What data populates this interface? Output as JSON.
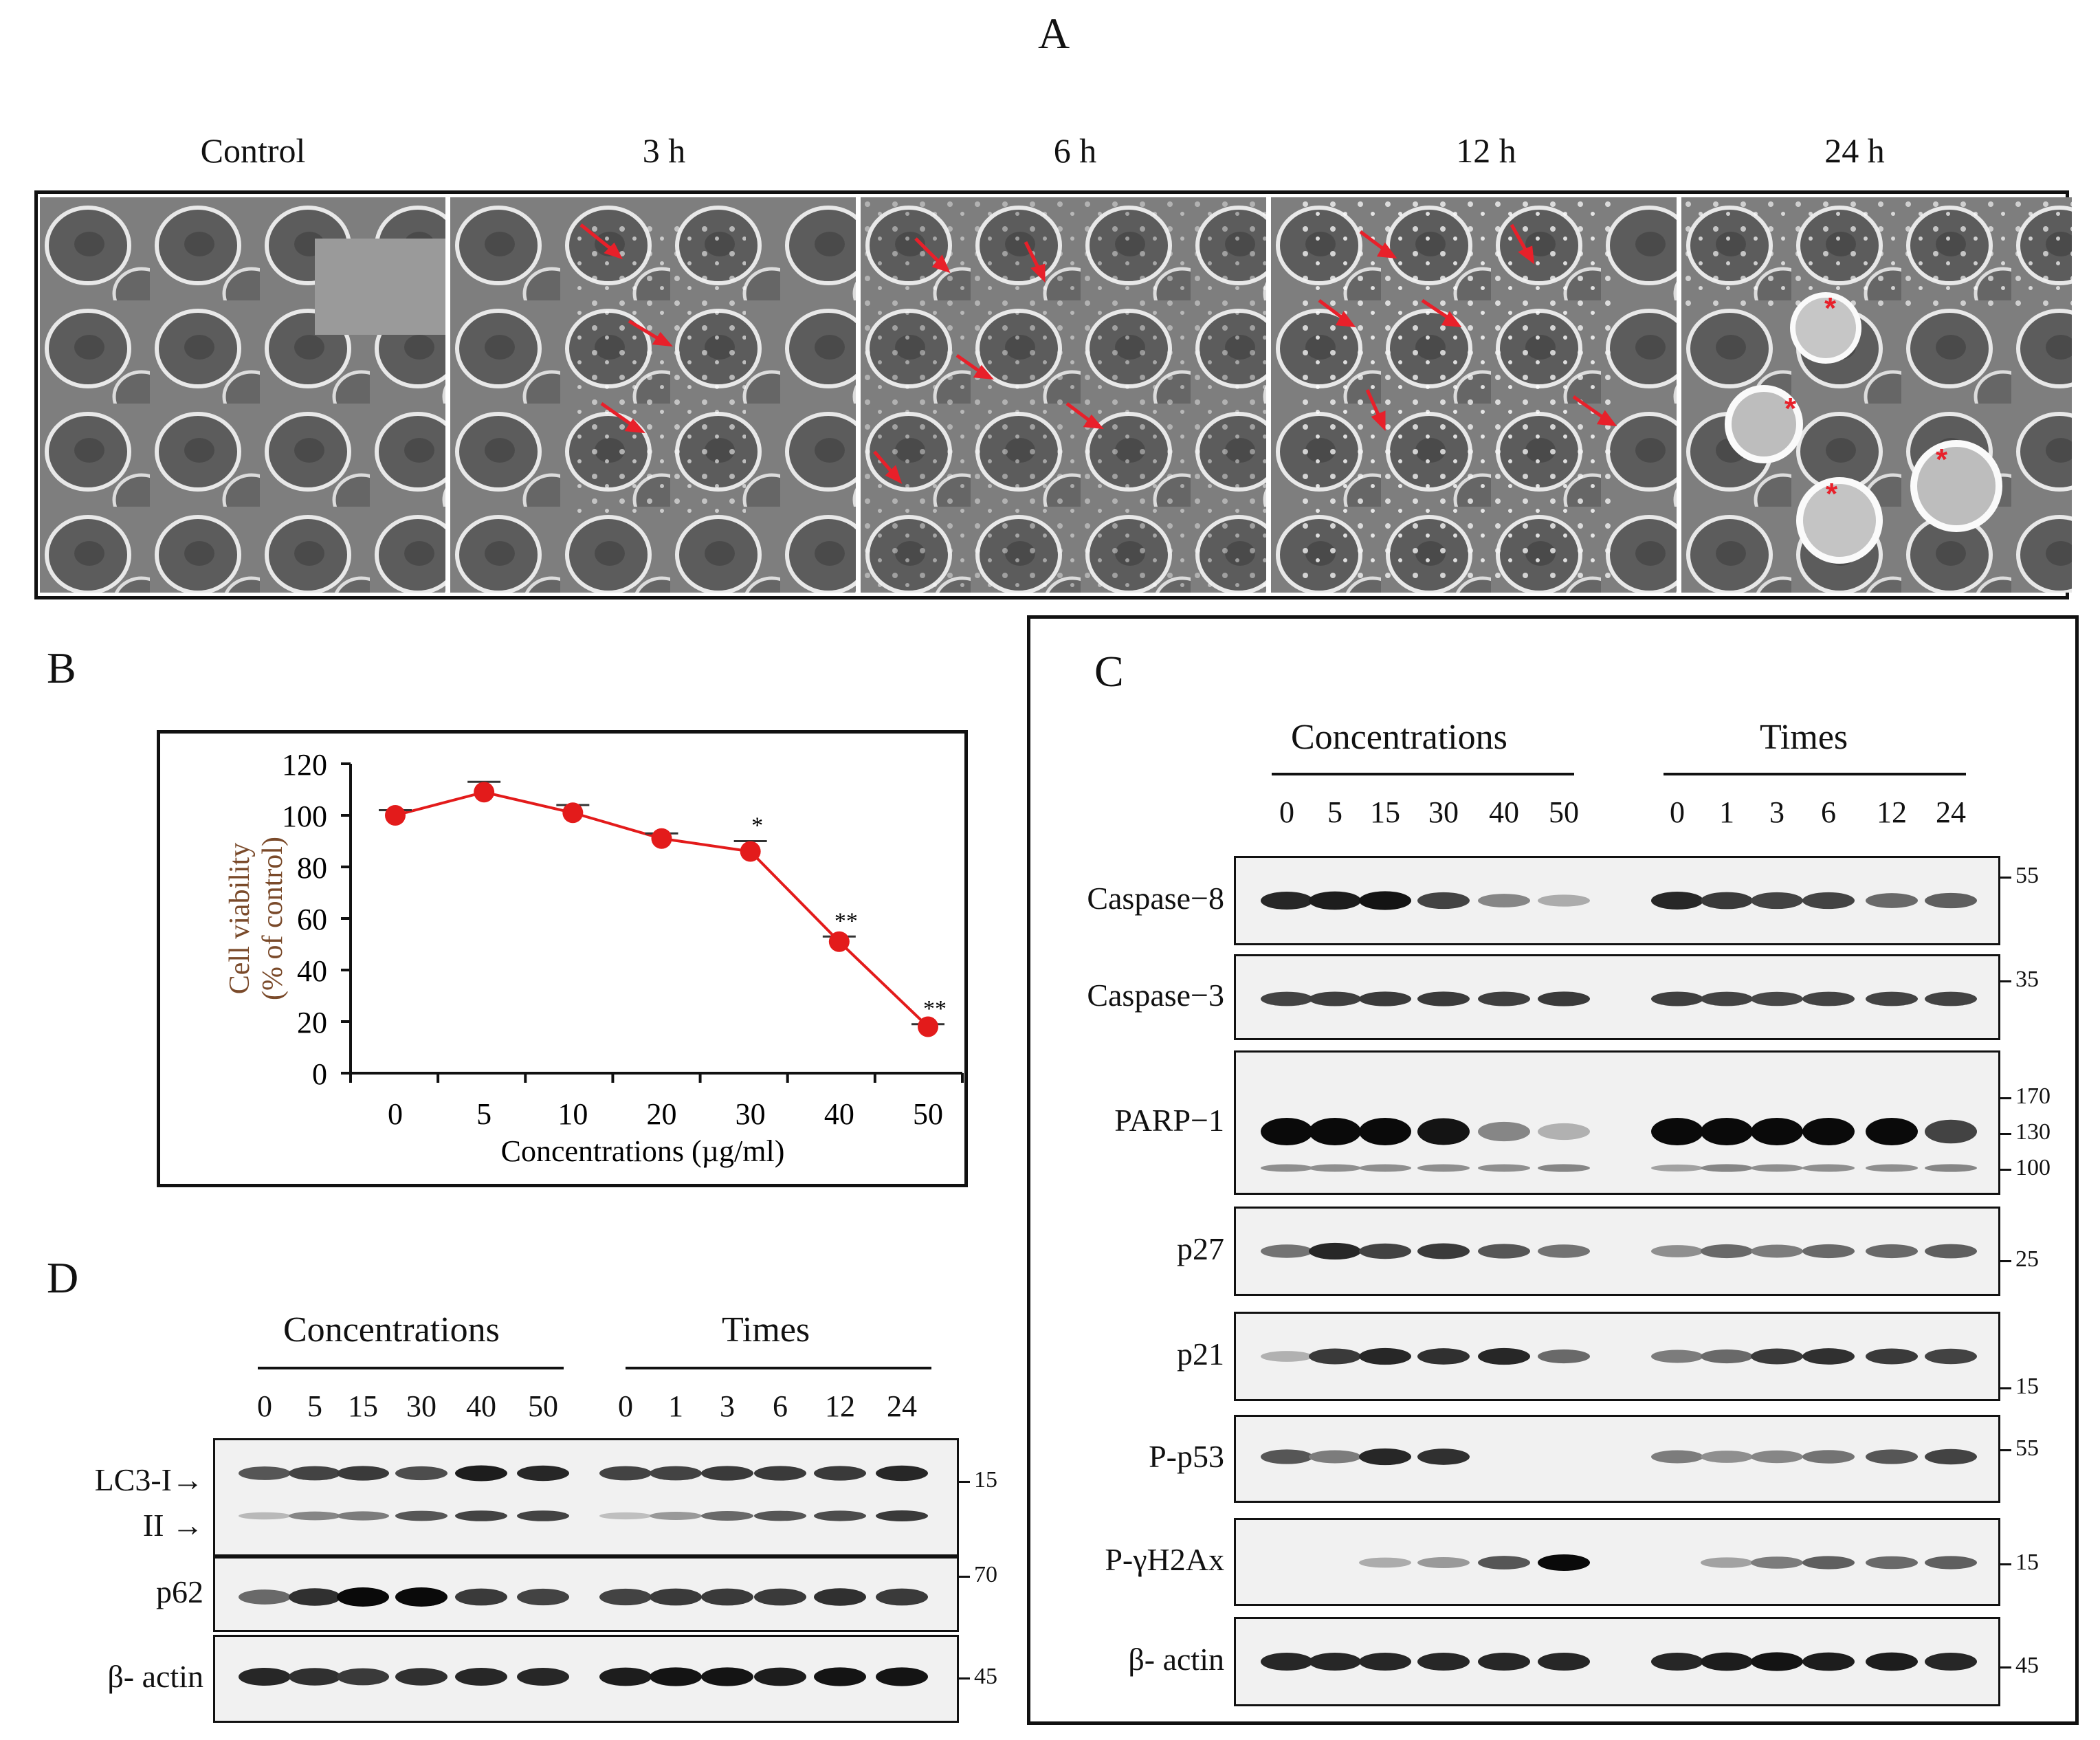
{
  "panel_a": {
    "letter": "A",
    "conditions": [
      "Control",
      "3 h",
      "6 h",
      "12 h",
      "24 h"
    ]
  },
  "panel_b": {
    "letter": "B"
  },
  "chart_data": {
    "type": "line",
    "x": [
      "0",
      "5",
      "10",
      "20",
      "30",
      "40",
      "50"
    ],
    "series": [
      {
        "values": [
          100,
          109,
          101,
          91,
          86,
          51,
          18
        ],
        "error": [
          2,
          4,
          3,
          2,
          4,
          2,
          1
        ],
        "color": "#e31b1b"
      }
    ],
    "significance": [
      "",
      "",
      "",
      "",
      "*",
      "**",
      "**"
    ],
    "xlabel": "Concentrations (µg/ml)",
    "ylabel_line1": "Cell viability",
    "ylabel_line2": "(% of control)",
    "ylim": [
      0,
      120
    ],
    "yticks": [
      "0",
      "20",
      "40",
      "60",
      "80",
      "100",
      "120"
    ],
    "grid": false
  },
  "panel_c": {
    "letter": "C",
    "group_conc": "Concentrations",
    "group_time": "Times",
    "lanes_conc": [
      "0",
      "5",
      "15",
      "30",
      "40",
      "50"
    ],
    "lanes_time": [
      "0",
      "1",
      "3",
      "6",
      "12",
      "24"
    ],
    "blots": [
      {
        "name": "Caspase−8",
        "markers": [
          "55"
        ]
      },
      {
        "name": "Caspase−3",
        "markers": [
          "35"
        ]
      },
      {
        "name": "PARP−1",
        "markers": [
          "170",
          "130",
          "100"
        ]
      },
      {
        "name": "p27",
        "markers": [
          "25"
        ]
      },
      {
        "name": "p21",
        "markers": [
          "15"
        ]
      },
      {
        "name": "P-p53",
        "markers": [
          "55"
        ]
      },
      {
        "name": "P-γH2Ax",
        "markers": [
          "15"
        ]
      },
      {
        "name": "β- actin",
        "markers": [
          "45"
        ]
      }
    ]
  },
  "panel_d": {
    "letter": "D",
    "group_conc": "Concentrations",
    "group_time": "Times",
    "lanes_conc": [
      "0",
      "5",
      "15",
      "30",
      "40",
      "50"
    ],
    "lanes_time": [
      "0",
      "1",
      "3",
      "6",
      "12",
      "24"
    ],
    "blots": [
      {
        "name": "LC3-I→",
        "name2": "II →",
        "markers": [
          "15"
        ]
      },
      {
        "name": "p62",
        "markers": [
          "70"
        ]
      },
      {
        "name": "β- actin",
        "markers": [
          "45"
        ]
      }
    ]
  },
  "colors": {
    "arrow": "#e8202a",
    "series": "#e31b1b",
    "axis_label": "#7a4a2a"
  }
}
